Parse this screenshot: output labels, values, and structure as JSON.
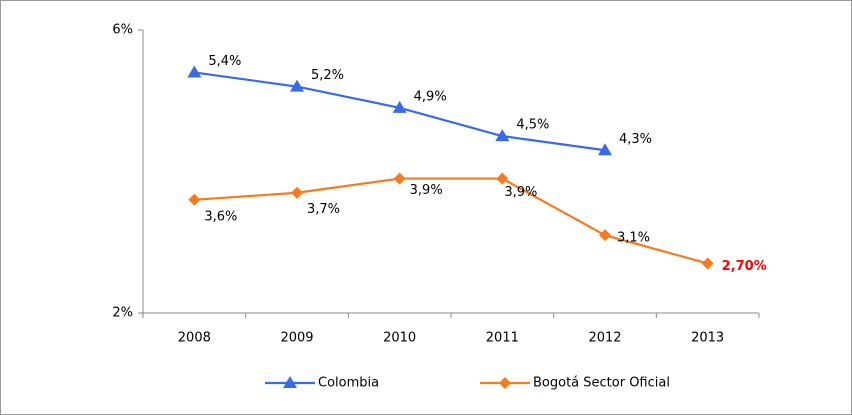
{
  "chart_data": {
    "type": "line",
    "categories": [
      "2008",
      "2009",
      "2010",
      "2011",
      "2012",
      "2013"
    ],
    "series": [
      {
        "name": "Colombia",
        "color": "#3b6ae8",
        "marker": "triangle",
        "values": [
          5.4,
          5.2,
          4.9,
          4.5,
          4.3,
          null
        ],
        "value_labels": [
          "5,4%",
          "5,2%",
          "4,9%",
          "4,5%",
          "4,3%",
          null
        ]
      },
      {
        "name": "Bogotá Sector Oficial",
        "color": "#f47b20",
        "marker": "diamond",
        "values": [
          3.6,
          3.7,
          3.9,
          3.9,
          3.1,
          2.7
        ],
        "value_labels": [
          "3,6%",
          "3,7%",
          "3,9%",
          "3,9%",
          "3,1%",
          "2,70%"
        ],
        "highlight_index": 5,
        "highlight_color": "#ff0000"
      }
    ],
    "ylim": [
      2,
      6
    ],
    "yticks": [
      {
        "value": 2,
        "label": "2%"
      },
      {
        "value": 6,
        "label": "6%"
      }
    ],
    "grid": false,
    "legend": "bottom"
  }
}
